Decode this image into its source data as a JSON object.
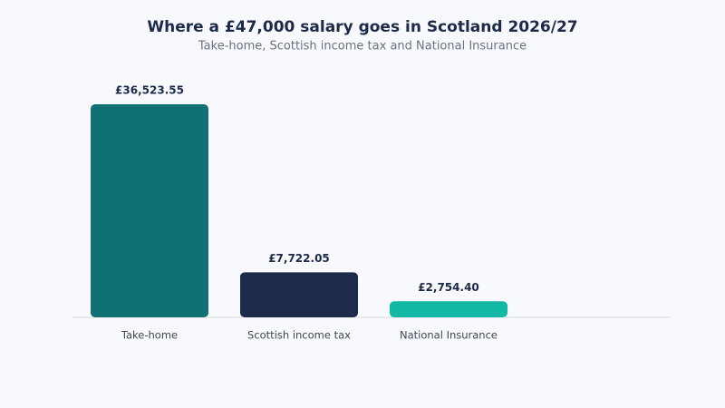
{
  "chart_data": {
    "type": "bar",
    "title": "Where a £47,000 salary goes in Scotland 2026/27",
    "subtitle": "Take-home, Scottish income tax and National Insurance",
    "categories": [
      "Take-home",
      "Scottish income tax",
      "National Insurance"
    ],
    "values": [
      36523.55,
      7722.05,
      2754.4
    ],
    "value_labels": [
      "£36,523.55",
      "£7,722.05",
      "£2,754.40"
    ],
    "colors": [
      "#0f7173",
      "#1e2a4a",
      "#14b8a6"
    ]
  }
}
